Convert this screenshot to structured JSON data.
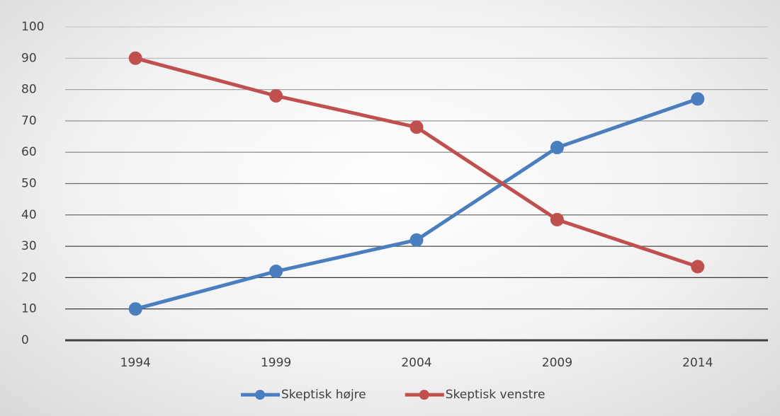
{
  "chart_data": {
    "type": "line",
    "categories": [
      "1994",
      "1999",
      "2004",
      "2009",
      "2014"
    ],
    "series": [
      {
        "name": "Skeptisk højre",
        "color": "#4a7ebf",
        "values": [
          10,
          22,
          32,
          61.5,
          77
        ]
      },
      {
        "name": "Skeptisk venstre",
        "color": "#c0504d",
        "values": [
          90,
          78,
          68,
          38.5,
          23.5
        ]
      }
    ],
    "ylim": [
      0,
      100
    ],
    "yticks": [
      0,
      10,
      20,
      30,
      40,
      50,
      60,
      70,
      80,
      90,
      100
    ],
    "grid": true,
    "legend": "bottom"
  }
}
